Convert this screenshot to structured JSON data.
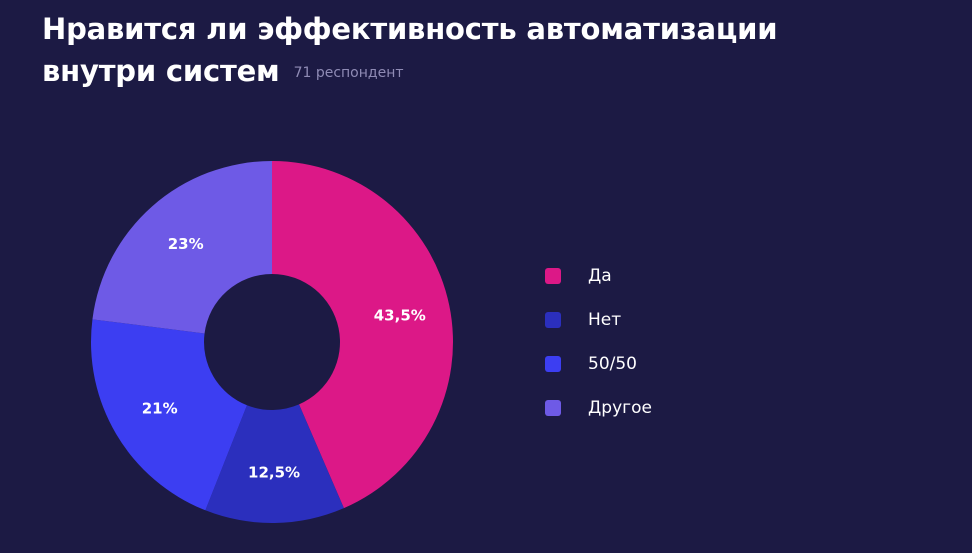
{
  "header": {
    "title_line1": "Нравится ли эффективность автоматизации",
    "title_line2": "внутри систем",
    "respondents": "71 респондент"
  },
  "chart_data": {
    "type": "pie",
    "donut": true,
    "categories": [
      "Да",
      "Нет",
      "50/50",
      "Другое"
    ],
    "values": [
      43.5,
      12.5,
      21,
      23
    ],
    "value_labels": [
      "43,5%",
      "12,5%",
      "21%",
      "23%"
    ],
    "colors": [
      "#dc1887",
      "#2b2fbd",
      "#3c3ef2",
      "#6e5ae6"
    ],
    "start": "12 o'clock",
    "direction": "clockwise",
    "legend_position": "right"
  },
  "legend": {
    "items": [
      {
        "label": "Да",
        "color": "#dc1887"
      },
      {
        "label": "Нет",
        "color": "#2b2fbd"
      },
      {
        "label": "50/50",
        "color": "#3c3ef2"
      },
      {
        "label": "Другое",
        "color": "#6e5ae6"
      }
    ]
  }
}
